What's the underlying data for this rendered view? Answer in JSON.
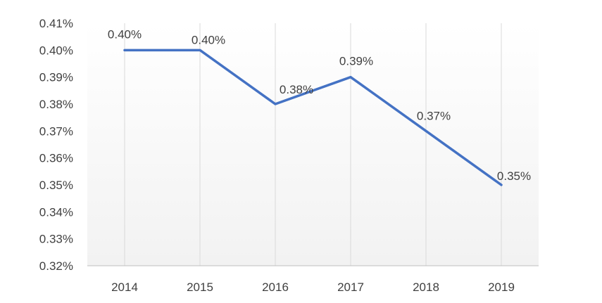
{
  "chart_data": {
    "type": "line",
    "title": "",
    "xlabel": "",
    "ylabel": "",
    "categories": [
      "2014",
      "2015",
      "2016",
      "2017",
      "2018",
      "2019"
    ],
    "series": [
      {
        "values": [
          0.4,
          0.4,
          0.38,
          0.39,
          0.37,
          0.35
        ],
        "labels": [
          "0.40%",
          "0.40%",
          "0.38%",
          "0.39%",
          "0.37%",
          "0.35%"
        ],
        "color": "#4472C4"
      }
    ],
    "ylim": [
      0.32,
      0.41
    ],
    "y_ticks": [
      "0.41%",
      "0.40%",
      "0.39%",
      "0.38%",
      "0.37%",
      "0.36%",
      "0.35%",
      "0.34%",
      "0.33%",
      "0.32%"
    ],
    "grid": "vertical",
    "legend": "none",
    "colors": {
      "line": "#4472C4",
      "gridline": "#D9D9D9",
      "axis": "#BFBFBF",
      "text": "#404040",
      "plot_gradient_top": "#FFFFFF",
      "plot_gradient_bottom": "#F2F2F2"
    }
  }
}
